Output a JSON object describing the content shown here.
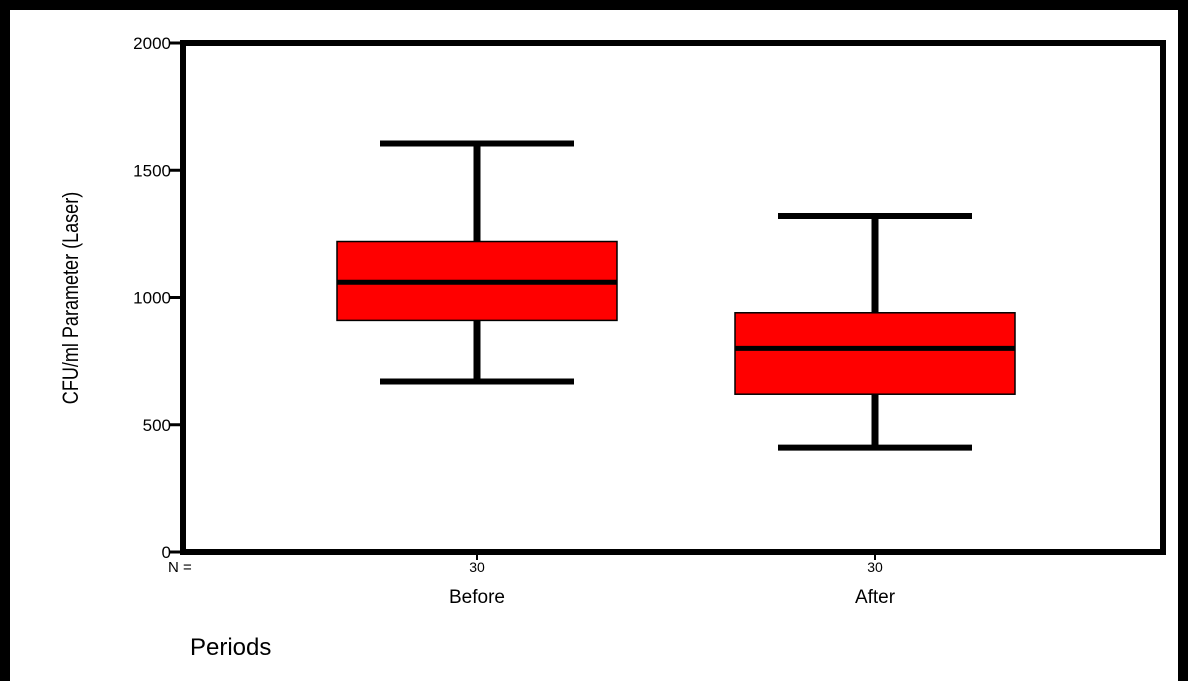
{
  "chart_data": {
    "type": "box",
    "categories": [
      "Before",
      "After"
    ],
    "n_label": "N =",
    "n_values": [
      "30",
      "30"
    ],
    "boxes": [
      {
        "category": "Before",
        "whisker_low": 670,
        "q1": 910,
        "median": 1060,
        "q3": 1220,
        "whisker_high": 1605
      },
      {
        "category": "After",
        "whisker_low": 410,
        "q1": 620,
        "median": 800,
        "q3": 940,
        "whisker_high": 1320
      }
    ],
    "ylabel": "CFU/ml Parameter (Laser)",
    "xlabel": "Periods",
    "ylim": [
      0,
      2000
    ],
    "yticks": [
      0,
      500,
      1000,
      1500,
      2000
    ],
    "box_color": "#ff0000",
    "grid": false
  }
}
